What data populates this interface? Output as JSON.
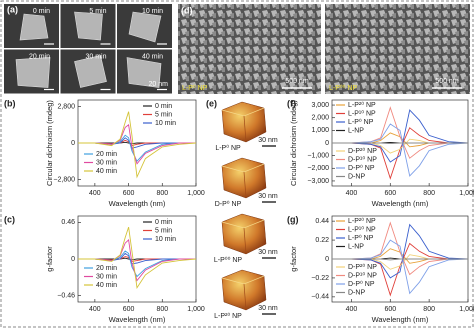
{
  "images": {
    "a": {
      "label": "(a)",
      "times": [
        "0 min",
        "5 min",
        "10 min",
        "20 min",
        "30 min",
        "40 min"
      ],
      "scale": "20 nm"
    },
    "d": {
      "label": "(d)",
      "names": [
        "L-P⁰ NP",
        "L-P⁰⁰ NP"
      ],
      "scale": "500 nm"
    },
    "e": {
      "label": "(e)",
      "names": [
        "L-P⁰ NP",
        "D-P⁰ NP",
        "L-P⁰⁰ NP",
        "L-P²⁰ NP"
      ],
      "scale": "30 nm"
    }
  },
  "chart_data": [
    {
      "type": "line",
      "label": "(b)",
      "ylabel": "Circular dichroism (mdeg)",
      "xlabel": "Wavelength (nm)",
      "x": [
        300,
        400,
        500,
        550,
        580,
        600,
        620,
        650,
        700,
        800,
        900,
        1000
      ],
      "series": [
        {
          "name": "0 min",
          "color": "#222222",
          "values": [
            0,
            0,
            0,
            0,
            50,
            0,
            -50,
            0,
            0,
            0,
            0,
            0
          ]
        },
        {
          "name": "5 min",
          "color": "#e0403a",
          "values": [
            0,
            0,
            -50,
            0,
            200,
            100,
            -200,
            -100,
            0,
            0,
            0,
            0
          ]
        },
        {
          "name": "10 min",
          "color": "#3a5fcd",
          "values": [
            0,
            0,
            -100,
            0,
            400,
            200,
            -400,
            -300,
            -100,
            0,
            0,
            0
          ]
        },
        {
          "name": "20 min",
          "color": "#3fa0e0",
          "values": [
            0,
            0,
            -100,
            100,
            600,
            400,
            -600,
            -1400,
            -700,
            -100,
            0,
            0
          ]
        },
        {
          "name": "30 min",
          "color": "#e04aa0",
          "values": [
            0,
            0,
            -100,
            200,
            1200,
            1400,
            -300,
            -1600,
            -800,
            -200,
            0,
            0
          ]
        },
        {
          "name": "40 min",
          "color": "#d4c43a",
          "values": [
            0,
            0,
            -200,
            300,
            1600,
            2400,
            600,
            -2600,
            -1200,
            -300,
            -100,
            0
          ]
        }
      ],
      "xlim": [
        300,
        1000
      ],
      "ylim": [
        -3300,
        3300
      ],
      "xticks": [
        400,
        600,
        800,
        {
          "value": 1000,
          "label": "1,000"
        }
      ],
      "yticks": [
        {
          "value": 2800,
          "label": "2,800"
        },
        0,
        {
          "value": -2800,
          "label": "−2,800"
        }
      ]
    },
    {
      "type": "line",
      "label": "(c)",
      "ylabel": "g-factor",
      "xlabel": "Wavelength (nm)",
      "x": [
        300,
        400,
        500,
        550,
        580,
        600,
        620,
        650,
        700,
        800,
        900,
        1000
      ],
      "series": [
        {
          "name": "0 min",
          "color": "#222222",
          "values": [
            0,
            0,
            0,
            0,
            0.01,
            0,
            -0.01,
            0,
            0,
            0,
            0,
            0
          ]
        },
        {
          "name": "5 min",
          "color": "#e0403a",
          "values": [
            0,
            0,
            -0.01,
            0,
            0.03,
            0.02,
            -0.03,
            -0.02,
            0,
            0,
            0,
            0
          ]
        },
        {
          "name": "10 min",
          "color": "#3a5fcd",
          "values": [
            0,
            0,
            -0.02,
            0,
            0.07,
            0.04,
            -0.06,
            -0.05,
            -0.02,
            0,
            0,
            0
          ]
        },
        {
          "name": "20 min",
          "color": "#3fa0e0",
          "values": [
            0,
            0,
            -0.02,
            0.02,
            0.1,
            0.07,
            -0.1,
            -0.22,
            -0.12,
            -0.02,
            0,
            0
          ]
        },
        {
          "name": "30 min",
          "color": "#e04aa0",
          "values": [
            0,
            0,
            -0.02,
            0.04,
            0.2,
            0.24,
            -0.05,
            -0.27,
            -0.14,
            -0.03,
            0,
            0
          ]
        },
        {
          "name": "40 min",
          "color": "#d4c43a",
          "values": [
            0,
            0,
            -0.03,
            0.05,
            0.27,
            0.4,
            0.1,
            -0.36,
            -0.2,
            -0.05,
            -0.02,
            0
          ]
        }
      ],
      "xlim": [
        300,
        1000
      ],
      "ylim": [
        -0.54,
        0.54
      ],
      "xticks": [
        400,
        600,
        800,
        {
          "value": 1000,
          "label": "1,000"
        }
      ],
      "yticks": [
        0.46,
        0,
        {
          "value": -0.46,
          "label": "−0.46"
        }
      ]
    },
    {
      "type": "line",
      "label": "(f)",
      "ylabel": "Circular dichroism (mdeg)",
      "xlabel": "Wavelength (nm)",
      "x": [
        300,
        400,
        500,
        550,
        600,
        650,
        700,
        750,
        800,
        900,
        1000
      ],
      "series": [
        {
          "name": "L-P²⁰ NP",
          "color": "#e8a23a",
          "values": [
            0,
            0,
            0,
            200,
            800,
            500,
            -300,
            -200,
            0,
            0,
            0
          ]
        },
        {
          "name": "L-P¹⁰ NP",
          "color": "#e0403a",
          "values": [
            0,
            0,
            -100,
            -400,
            -2800,
            -500,
            1200,
            600,
            200,
            0,
            0
          ]
        },
        {
          "name": "L-P⁰ NP",
          "color": "#3a5fcd",
          "values": [
            0,
            0,
            -100,
            -300,
            -1500,
            -1000,
            2600,
            1800,
            600,
            100,
            0
          ]
        },
        {
          "name": "L-NP",
          "color": "#222222",
          "values": [
            0,
            0,
            0,
            0,
            50,
            0,
            0,
            0,
            0,
            0,
            0
          ]
        },
        {
          "name": "D-P²⁰ NP",
          "color": "#f2d27a",
          "values": [
            0,
            0,
            0,
            -200,
            -800,
            -500,
            300,
            200,
            0,
            0,
            0
          ]
        },
        {
          "name": "D-P¹⁰ NP",
          "color": "#f08a80",
          "values": [
            0,
            0,
            100,
            400,
            2800,
            500,
            -1200,
            -600,
            -200,
            0,
            0
          ]
        },
        {
          "name": "D-P⁰ NP",
          "color": "#7fa0e8",
          "values": [
            0,
            0,
            100,
            300,
            1500,
            1000,
            -2600,
            -1800,
            -600,
            -100,
            0
          ]
        },
        {
          "name": "D-NP",
          "color": "#888888",
          "values": [
            0,
            0,
            0,
            0,
            -50,
            0,
            0,
            0,
            0,
            0,
            0
          ]
        }
      ],
      "xlim": [
        300,
        1000
      ],
      "ylim": [
        -3400,
        3400
      ],
      "xticks": [
        400,
        600,
        800,
        {
          "value": 1000,
          "label": "1,000"
        }
      ],
      "yticks": [
        {
          "value": 3000,
          "label": "3,000"
        },
        {
          "value": 2000,
          "label": "2,000"
        },
        {
          "value": 1000,
          "label": "1,000"
        },
        0,
        {
          "value": -1000,
          "label": "−1,000"
        },
        {
          "value": -2000,
          "label": "−2,000"
        },
        {
          "value": -3000,
          "label": "−3,000"
        }
      ]
    },
    {
      "type": "line",
      "label": "(g)",
      "ylabel": "g-factor",
      "xlabel": "Wavelength (nm)",
      "x": [
        300,
        400,
        500,
        550,
        600,
        650,
        700,
        750,
        800,
        900,
        1000
      ],
      "series": [
        {
          "name": "L-P²⁰ NP",
          "color": "#e8a23a",
          "values": [
            0,
            0,
            0,
            0.03,
            0.12,
            0.08,
            -0.05,
            -0.03,
            0,
            0,
            0
          ]
        },
        {
          "name": "L-P¹⁰ NP",
          "color": "#e0403a",
          "values": [
            0,
            0,
            -0.01,
            -0.06,
            -0.42,
            -0.08,
            0.18,
            0.09,
            0.03,
            0,
            0
          ]
        },
        {
          "name": "L-P⁰ NP",
          "color": "#3a5fcd",
          "values": [
            0,
            0,
            -0.01,
            -0.05,
            -0.22,
            -0.15,
            0.4,
            0.27,
            0.09,
            0.01,
            0
          ]
        },
        {
          "name": "L-NP",
          "color": "#222222",
          "values": [
            0,
            0,
            0,
            0,
            0.01,
            0,
            0,
            0,
            0,
            0,
            0
          ]
        },
        {
          "name": "D-P²⁰ NP",
          "color": "#f2d27a",
          "values": [
            0,
            0,
            0,
            -0.03,
            -0.12,
            -0.08,
            0.05,
            0.03,
            0,
            0,
            0
          ]
        },
        {
          "name": "D-P¹⁰ NP",
          "color": "#f08a80",
          "values": [
            0,
            0,
            0.01,
            0.06,
            0.42,
            0.08,
            -0.18,
            -0.09,
            -0.03,
            0,
            0
          ]
        },
        {
          "name": "D-P⁰ NP",
          "color": "#7fa0e8",
          "values": [
            0,
            0,
            0.01,
            0.05,
            0.22,
            0.15,
            -0.4,
            -0.27,
            -0.09,
            -0.01,
            0
          ]
        },
        {
          "name": "D-NP",
          "color": "#888888",
          "values": [
            0,
            0,
            0,
            0,
            -0.01,
            0,
            0,
            0,
            0,
            0,
            0
          ]
        }
      ],
      "xlim": [
        300,
        1000
      ],
      "ylim": [
        -0.5,
        0.5
      ],
      "xticks": [
        400,
        600,
        800,
        {
          "value": 1000,
          "label": "1,000"
        }
      ],
      "yticks": [
        0.44,
        0.22,
        0,
        {
          "value": -0.22,
          "label": "−0.22"
        },
        {
          "value": -0.44,
          "label": "−0.44"
        }
      ]
    }
  ]
}
